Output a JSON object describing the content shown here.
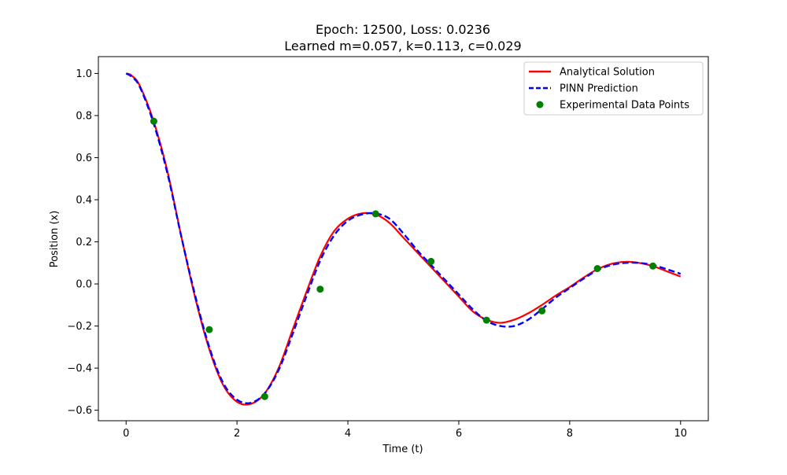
{
  "chart_data": {
    "type": "line",
    "title_line1": "Epoch: 12500, Loss: 0.0236",
    "title_line2": "Learned m=0.057, k=0.113, c=0.029",
    "xlabel": "Time (t)",
    "ylabel": "Position (x)",
    "xlim": [
      -0.5,
      10.5
    ],
    "ylim": [
      -0.65,
      1.08
    ],
    "xticks": [
      0,
      2,
      4,
      6,
      8,
      10
    ],
    "xtick_labels": [
      "0",
      "2",
      "4",
      "6",
      "8",
      "10"
    ],
    "yticks": [
      -0.6,
      -0.4,
      -0.2,
      0.0,
      0.2,
      0.4,
      0.6,
      0.8,
      1.0
    ],
    "ytick_labels": [
      "−0.6",
      "−0.4",
      "−0.2",
      "0.0",
      "0.2",
      "0.4",
      "0.6",
      "0.8",
      "1.0"
    ],
    "grid": false,
    "legend_position": "top-right",
    "series": [
      {
        "name": "Analytical Solution",
        "style": "solid",
        "color": "#ff0000",
        "x": [
          0,
          0.1,
          0.25,
          0.5,
          0.75,
          1.0,
          1.25,
          1.5,
          1.75,
          2.0,
          2.25,
          2.5,
          2.75,
          3.0,
          3.25,
          3.5,
          3.75,
          4.0,
          4.25,
          4.5,
          4.75,
          5.0,
          5.25,
          5.5,
          5.75,
          6.0,
          6.25,
          6.5,
          6.75,
          7.0,
          7.25,
          7.5,
          7.75,
          8.0,
          8.25,
          8.5,
          8.75,
          9.0,
          9.25,
          9.5,
          9.75,
          10.0
        ],
        "y": [
          1.0,
          0.99,
          0.94,
          0.77,
          0.53,
          0.22,
          -0.07,
          -0.31,
          -0.48,
          -0.56,
          -0.57,
          -0.52,
          -0.4,
          -0.22,
          -0.04,
          0.13,
          0.25,
          0.31,
          0.335,
          0.33,
          0.29,
          0.22,
          0.15,
          0.08,
          0.01,
          -0.06,
          -0.13,
          -0.17,
          -0.185,
          -0.17,
          -0.14,
          -0.1,
          -0.055,
          -0.015,
          0.03,
          0.07,
          0.095,
          0.105,
          0.1,
          0.085,
          0.06,
          0.035
        ]
      },
      {
        "name": "PINN Prediction",
        "style": "dashed",
        "color": "#0000ff",
        "x": [
          0,
          0.1,
          0.25,
          0.5,
          0.75,
          1.0,
          1.25,
          1.5,
          1.75,
          2.0,
          2.25,
          2.5,
          2.75,
          3.0,
          3.25,
          3.5,
          3.75,
          4.0,
          4.25,
          4.5,
          4.75,
          5.0,
          5.25,
          5.5,
          5.75,
          6.0,
          6.25,
          6.5,
          6.75,
          7.0,
          7.25,
          7.5,
          7.75,
          8.0,
          8.25,
          8.5,
          8.75,
          9.0,
          9.25,
          9.5,
          9.75,
          10.0
        ],
        "y": [
          1.0,
          0.985,
          0.935,
          0.76,
          0.52,
          0.22,
          -0.06,
          -0.3,
          -0.47,
          -0.55,
          -0.565,
          -0.52,
          -0.41,
          -0.24,
          -0.06,
          0.11,
          0.23,
          0.3,
          0.33,
          0.335,
          0.31,
          0.24,
          0.16,
          0.09,
          0.02,
          -0.05,
          -0.12,
          -0.175,
          -0.2,
          -0.2,
          -0.17,
          -0.12,
          -0.065,
          -0.02,
          0.025,
          0.065,
          0.09,
          0.1,
          0.1,
          0.09,
          0.07,
          0.048
        ]
      },
      {
        "name": "Experimental Data Points",
        "style": "markers",
        "color": "#008000",
        "x": [
          0.5,
          1.5,
          2.5,
          3.5,
          4.5,
          5.5,
          6.5,
          7.5,
          8.5,
          9.5
        ],
        "y": [
          0.773,
          -0.217,
          -0.535,
          -0.025,
          0.333,
          0.107,
          -0.172,
          -0.128,
          0.073,
          0.085
        ]
      }
    ]
  }
}
